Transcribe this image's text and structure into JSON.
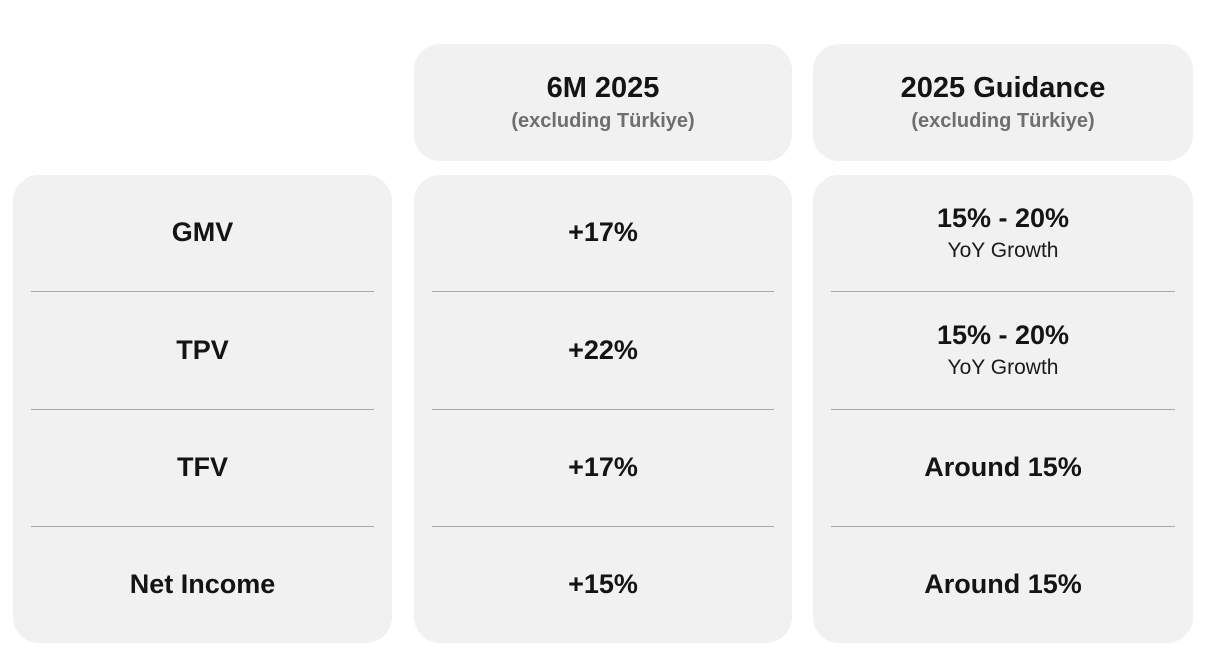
{
  "colors": {
    "page_bg": "#ffffff",
    "card_bg": "#f1f1f1",
    "divider": "#a9a9a9",
    "text_primary": "#141414",
    "text_muted": "#6e6e6e"
  },
  "header": {
    "col1": {
      "title": "6M 2025",
      "subtitle": "(excluding Türkiye)"
    },
    "col2": {
      "title": "2025 Guidance",
      "subtitle": "(excluding Türkiye)"
    }
  },
  "table": {
    "metrics": [
      "GMV",
      "TPV",
      "TFV",
      "Net Income"
    ],
    "six_month": [
      "+17%",
      "+22%",
      "+17%",
      "+15%"
    ],
    "guidance": [
      {
        "value": "15% - 20%",
        "note": "YoY Growth"
      },
      {
        "value": "15% - 20%",
        "note": "YoY Growth"
      },
      {
        "value": "Around 15%",
        "note": ""
      },
      {
        "value": "Around 15%",
        "note": ""
      }
    ]
  },
  "chart_data": {
    "type": "table",
    "columns": [
      "",
      "6M 2025 (excluding Türkiye)",
      "2025 Guidance (excluding Türkiye)"
    ],
    "rows": [
      [
        "GMV",
        "+17%",
        "15% - 20% YoY Growth"
      ],
      [
        "TPV",
        "+22%",
        "15% - 20% YoY Growth"
      ],
      [
        "TFV",
        "+17%",
        "Around 15%"
      ],
      [
        "Net Income",
        "+15%",
        "Around 15%"
      ]
    ]
  }
}
